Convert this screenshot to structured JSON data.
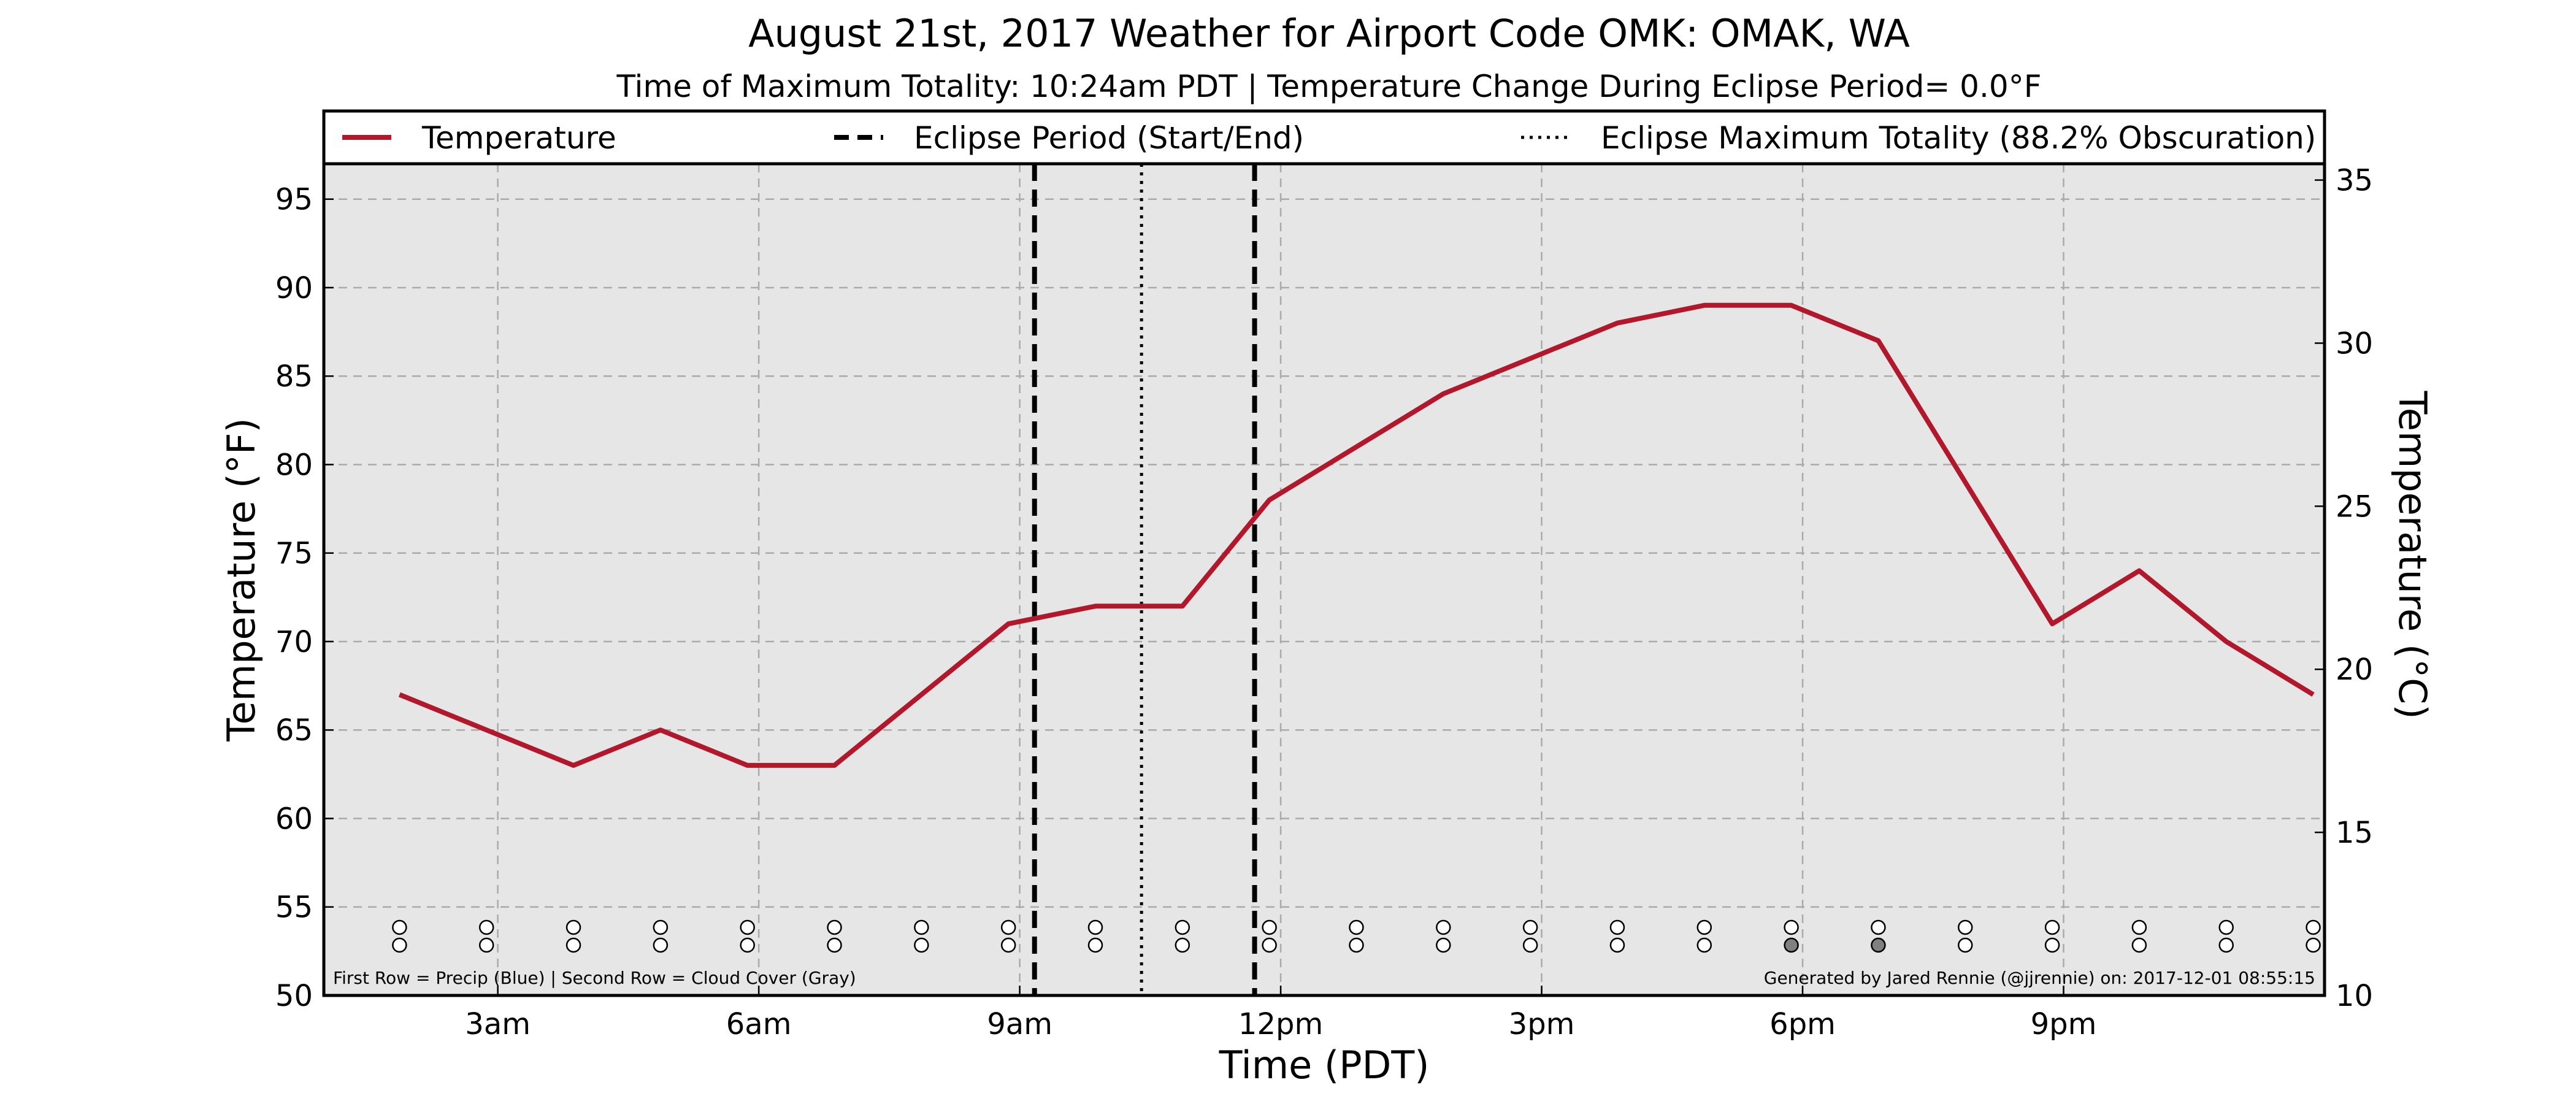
{
  "chart_data": {
    "type": "line",
    "title": "August 21st, 2017 Weather for Airport Code OMK: OMAK, WA",
    "subtitle": "Time of Maximum Totality: 10:24am PDT | Temperature Change During Eclipse Period= 0.0°F",
    "xlabel": "Time (PDT)",
    "ylabel": "Temperature (°F)",
    "ylabel_right": "Temperature (°C)",
    "xlim": [
      1.0,
      24.0
    ],
    "ylim": [
      50,
      97
    ],
    "ylim_right": [
      10,
      35.5
    ],
    "x_ticks": [
      {
        "x": 3,
        "label": "3am"
      },
      {
        "x": 6,
        "label": "6am"
      },
      {
        "x": 9,
        "label": "9am"
      },
      {
        "x": 12,
        "label": "12pm"
      },
      {
        "x": 15,
        "label": "3pm"
      },
      {
        "x": 18,
        "label": "6pm"
      },
      {
        "x": 21,
        "label": "9pm"
      }
    ],
    "y_ticks": [
      50,
      55,
      60,
      65,
      70,
      75,
      80,
      85,
      90,
      95
    ],
    "y_ticks_right": [
      10,
      15,
      20,
      25,
      30,
      35
    ],
    "grid": true,
    "legend_position": "top",
    "legend": [
      {
        "label": "Temperature",
        "style": "solid",
        "color": "#b2182b"
      },
      {
        "label": "Eclipse Period (Start/End)",
        "style": "dashed",
        "color": "#000000"
      },
      {
        "label": "Eclipse Maximum Totality (88.2% Obscuration)",
        "style": "dotted",
        "color": "#000000"
      }
    ],
    "series": [
      {
        "name": "Temperature",
        "color": "#b2182b",
        "x": [
          1.87,
          2.87,
          3.87,
          4.87,
          5.87,
          6.87,
          7.87,
          8.87,
          9.87,
          10.87,
          11.87,
          12.87,
          13.87,
          14.87,
          15.87,
          16.87,
          17.87,
          18.87,
          19.87,
          20.87,
          21.87,
          22.87,
          23.87
        ],
        "y": [
          67,
          65,
          63,
          65,
          63,
          63,
          67,
          71,
          72,
          72,
          78,
          81,
          84,
          86,
          88,
          89,
          89,
          87,
          79,
          71,
          74,
          70,
          67
        ]
      }
    ],
    "eclipse_period": [
      9.17,
      11.7
    ],
    "eclipse_max": 10.4,
    "indicator_rows": {
      "x": [
        1.87,
        2.87,
        3.87,
        4.87,
        5.87,
        6.87,
        7.87,
        8.87,
        9.87,
        10.87,
        11.87,
        12.87,
        13.87,
        14.87,
        15.87,
        16.87,
        17.87,
        18.87,
        19.87,
        20.87,
        21.87,
        22.87,
        23.87
      ],
      "precip_fill": [
        "#ffffff",
        "#ffffff",
        "#ffffff",
        "#ffffff",
        "#ffffff",
        "#ffffff",
        "#ffffff",
        "#ffffff",
        "#ffffff",
        "#ffffff",
        "#ffffff",
        "#ffffff",
        "#ffffff",
        "#ffffff",
        "#ffffff",
        "#ffffff",
        "#ffffff",
        "#ffffff",
        "#ffffff",
        "#ffffff",
        "#ffffff",
        "#ffffff",
        "#ffffff"
      ],
      "cloud_fill": [
        "#ffffff",
        "#ffffff",
        "#ffffff",
        "#ffffff",
        "#ffffff",
        "#ffffff",
        "#ffffff",
        "#ffffff",
        "#ffffff",
        "#ffffff",
        "#ffffff",
        "#ffffff",
        "#ffffff",
        "#ffffff",
        "#ffffff",
        "#ffffff",
        "#808080",
        "#808080",
        "#ffffff",
        "#ffffff",
        "#ffffff",
        "#ffffff",
        "#ffffff"
      ]
    },
    "footnote_left": "First Row = Precip (Blue) | Second Row = Cloud Cover (Gray)",
    "footnote_right": "Generated by Jared Rennie (@jjrennie) on: 2017-12-01 08:55:15"
  },
  "colors": {
    "plot_bg": "#e6e6e6",
    "grid": "#aaaaaa",
    "line": "#b2182b"
  }
}
